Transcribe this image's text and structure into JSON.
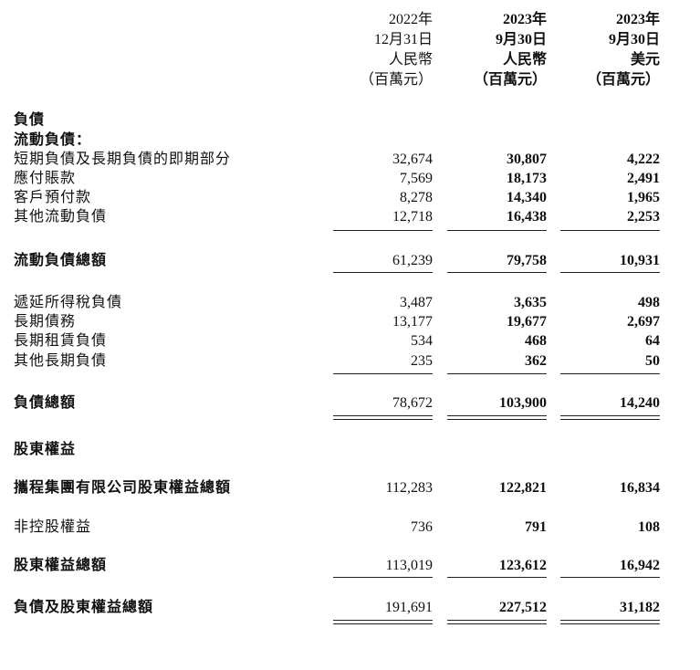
{
  "header": {
    "columns": [
      [
        "2022年",
        "12月31日",
        "人民幣",
        "（百萬元）"
      ],
      [
        "2023年",
        "9月30日",
        "人民幣",
        "（百萬元）"
      ],
      [
        "2023年",
        "9月30日",
        "美元",
        "（百萬元）"
      ]
    ]
  },
  "table": {
    "rows": [
      {
        "label": "負債",
        "bold": true
      },
      {
        "label": "流動負債：",
        "bold": true
      },
      {
        "label": "短期負債及長期負債的即期部分",
        "bold": false,
        "values": [
          "32,674",
          "30,807",
          "4,222"
        ]
      },
      {
        "label": "應付賬款",
        "bold": false,
        "values": [
          "7,569",
          "18,173",
          "2,491"
        ]
      },
      {
        "label": "客戶預付款",
        "bold": false,
        "values": [
          "8,278",
          "14,340",
          "1,965"
        ]
      },
      {
        "label": "其他流動負債",
        "bold": false,
        "values": [
          "12,718",
          "16,438",
          "2,253"
        ]
      },
      {
        "label": "流動負債總額",
        "bold": true,
        "values": [
          "61,239",
          "79,758",
          "10,931"
        ]
      },
      {
        "label": "遞延所得稅負債",
        "bold": false,
        "values": [
          "3,487",
          "3,635",
          "498"
        ]
      },
      {
        "label": "長期債務",
        "bold": false,
        "values": [
          "13,177",
          "19,677",
          "2,697"
        ]
      },
      {
        "label": "長期租賃負債",
        "bold": false,
        "values": [
          "534",
          "468",
          "64"
        ]
      },
      {
        "label": "其他長期負債",
        "bold": false,
        "values": [
          "235",
          "362",
          "50"
        ]
      },
      {
        "label": "負債總額",
        "bold": true,
        "values": [
          "78,672",
          "103,900",
          "14,240"
        ]
      },
      {
        "label": "股東權益",
        "bold": true
      },
      {
        "label": "攜程集團有限公司股東權益總額",
        "bold": true,
        "values": [
          "112,283",
          "122,821",
          "16,834"
        ]
      },
      {
        "label": "非控股權益",
        "bold": false,
        "values": [
          "736",
          "791",
          "108"
        ]
      },
      {
        "label": "股東權益總額",
        "bold": true,
        "values": [
          "113,019",
          "123,612",
          "16,942"
        ]
      },
      {
        "label": "負債及股東權益總額",
        "bold": true,
        "values": [
          "191,691",
          "227,512",
          "31,182"
        ]
      }
    ]
  }
}
